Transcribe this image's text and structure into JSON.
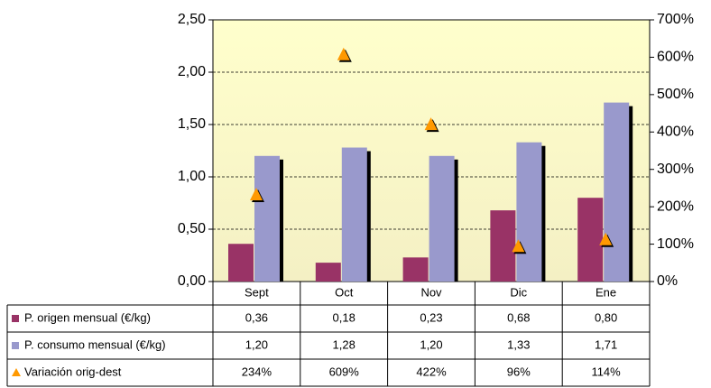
{
  "chart_data": {
    "type": "bar",
    "categories": [
      "Sept",
      "Oct",
      "Nov",
      "Dic",
      "Ene"
    ],
    "series": [
      {
        "name": "P. origen mensual (€/kg)",
        "color": "#993366",
        "values": [
          0.36,
          0.18,
          0.23,
          0.68,
          0.8
        ],
        "value_labels": [
          "0,36",
          "0,18",
          "0,23",
          "0,68",
          "0,80"
        ]
      },
      {
        "name": "P. consumo mensual (€/kg)",
        "color": "#9999cc",
        "values": [
          1.2,
          1.28,
          1.2,
          1.33,
          1.71
        ],
        "value_labels": [
          "1,20",
          "1,28",
          "1,20",
          "1,33",
          "1,71"
        ]
      },
      {
        "name": "Variación orig-dest",
        "color": "#ff9900",
        "axis": "y2",
        "marker": "triangle",
        "values": [
          234,
          609,
          422,
          96,
          114
        ],
        "value_labels": [
          "234%",
          "609%",
          "422%",
          "96%",
          "114%"
        ]
      }
    ],
    "ylim": [
      0,
      2.5
    ],
    "yticks": [
      {
        "value": 0,
        "label": "0,00"
      },
      {
        "value": 0.5,
        "label": "0,50"
      },
      {
        "value": 1,
        "label": "1,00"
      },
      {
        "value": 1.5,
        "label": "1,50"
      },
      {
        "value": 2,
        "label": "2,00"
      },
      {
        "value": 2.5,
        "label": "2,50"
      }
    ],
    "y2lim": [
      0,
      700
    ],
    "y2ticks": [
      {
        "value": 0,
        "label": "0%"
      },
      {
        "value": 100,
        "label": "100%"
      },
      {
        "value": 200,
        "label": "200%"
      },
      {
        "value": 300,
        "label": "300%"
      },
      {
        "value": 400,
        "label": "400%"
      },
      {
        "value": 500,
        "label": "500%"
      },
      {
        "value": 600,
        "label": "600%"
      },
      {
        "value": 700,
        "label": "700%"
      }
    ],
    "grid": true
  }
}
